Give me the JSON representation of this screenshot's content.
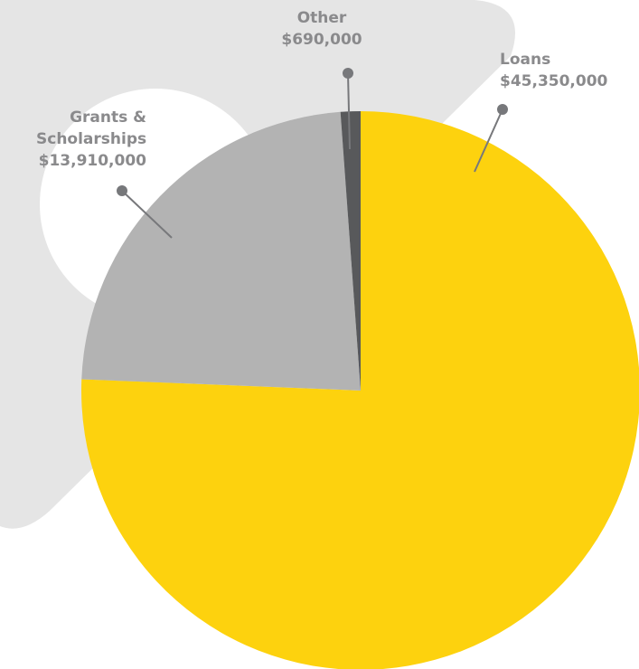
{
  "chart_data": {
    "type": "pie",
    "categories": [
      "Loans",
      "Grants & Scholarships",
      "Other"
    ],
    "values": [
      45350000,
      13910000,
      690000
    ],
    "value_labels": [
      "$45,350,000",
      "$13,910,000",
      "$690,000"
    ],
    "colors": [
      "#fdd20e",
      "#b3b3b3",
      "#58595b"
    ]
  }
}
